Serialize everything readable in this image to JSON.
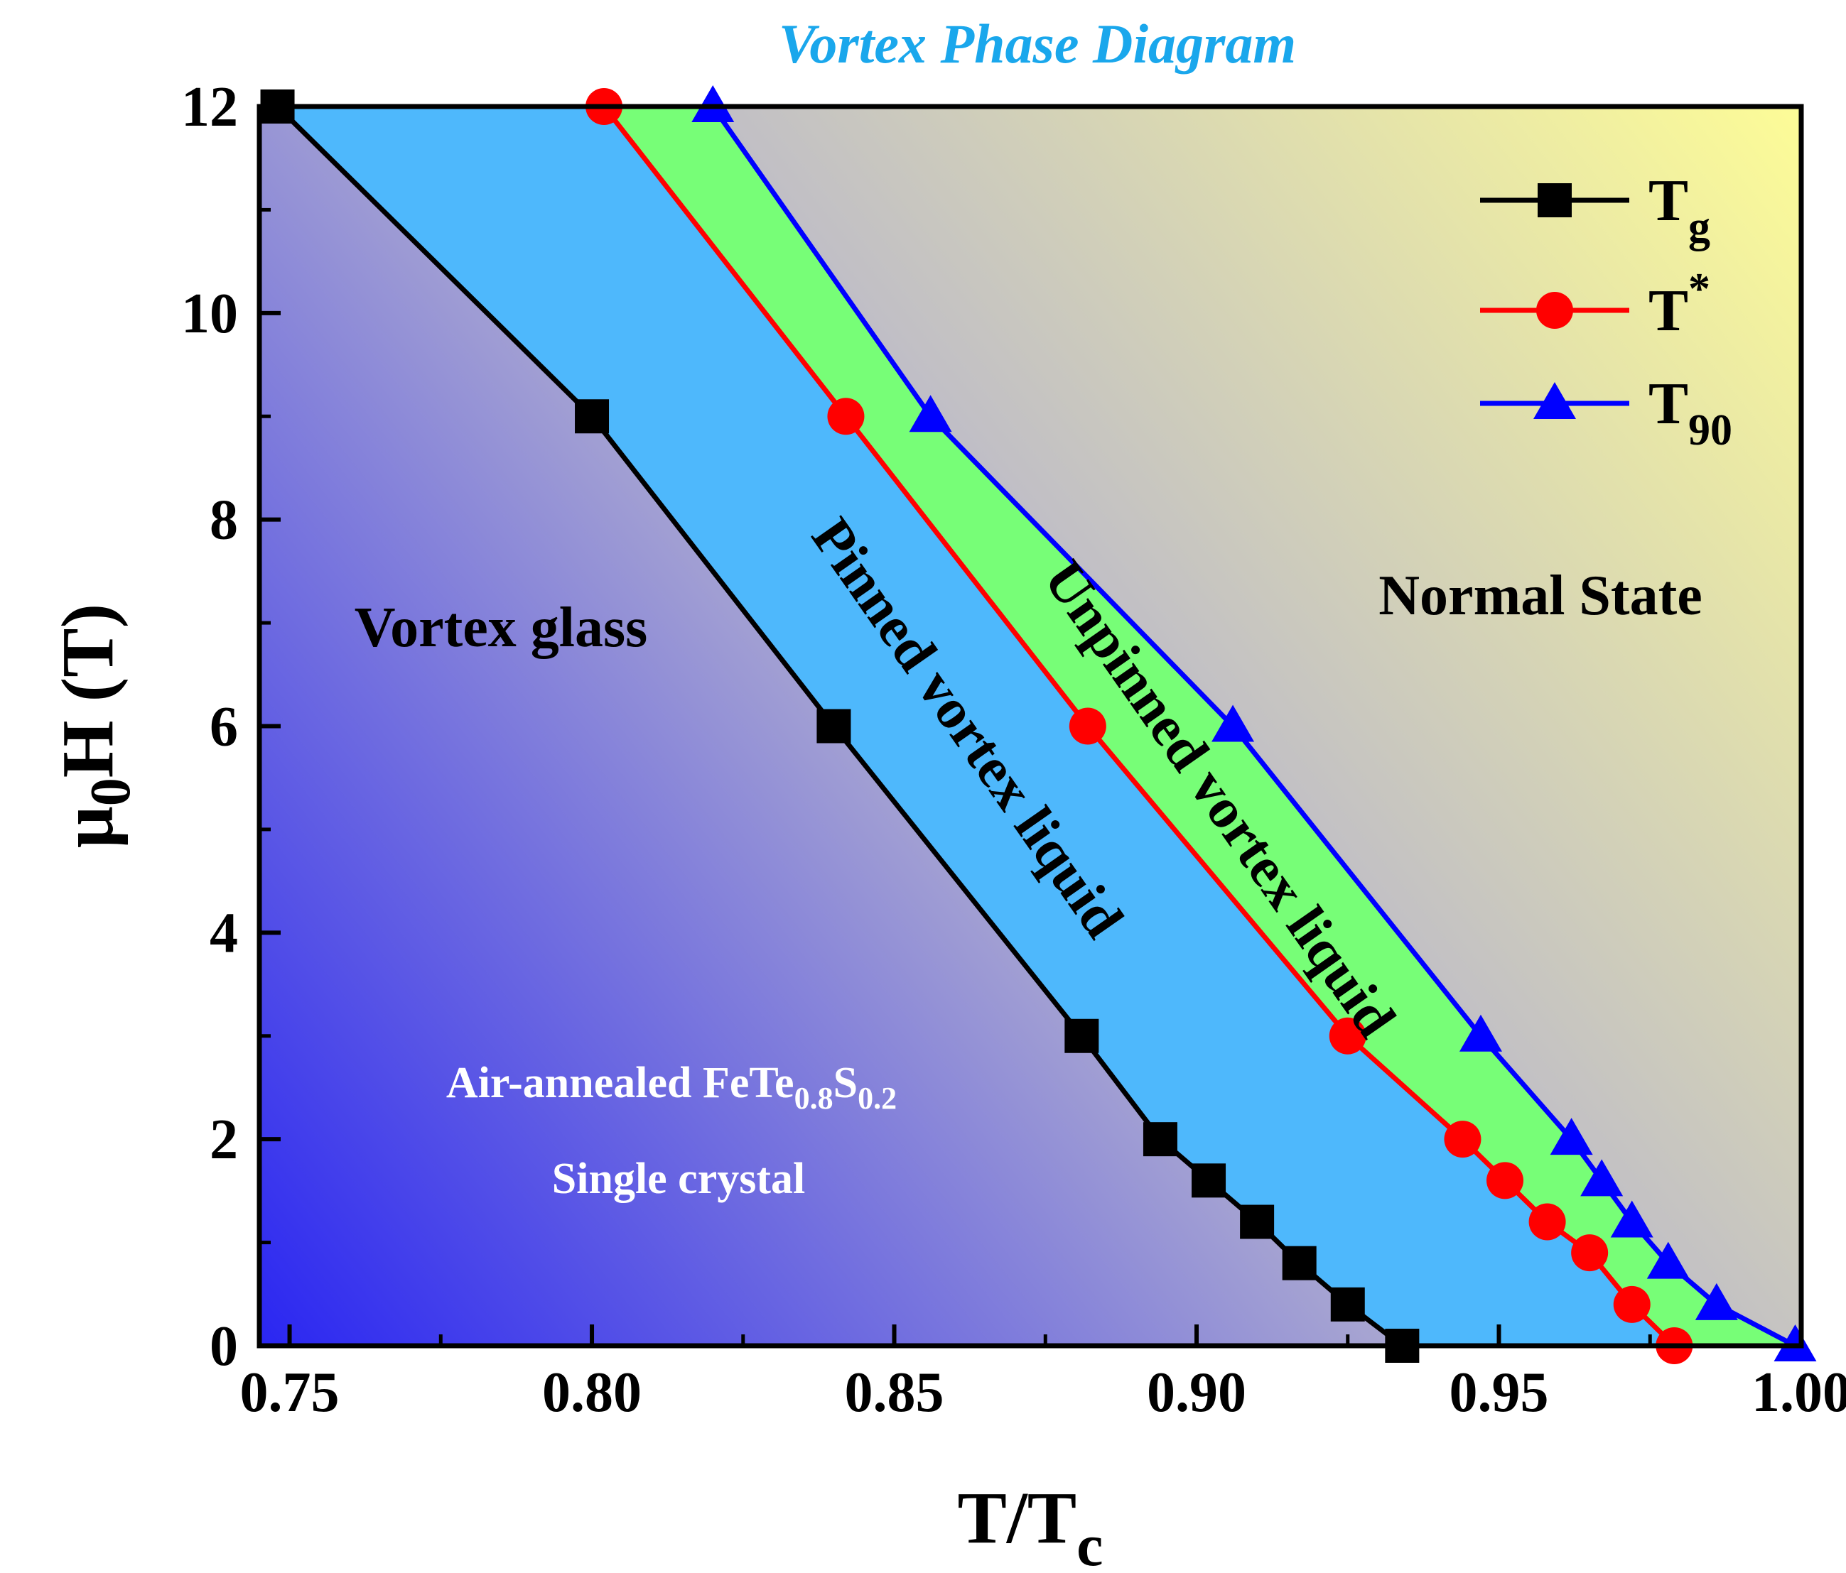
{
  "chart_data": {
    "type": "line",
    "title": "Vortex Phase Diagram",
    "xlabel": {
      "main": "T/T",
      "sub": "c"
    },
    "ylabel": {
      "pre": "μ",
      "sub": "0",
      "post": "H (T)"
    },
    "xlim": [
      0.745,
      1.0
    ],
    "ylim": [
      0,
      12
    ],
    "xticks": [
      "0.75",
      "0.80",
      "0.85",
      "0.90",
      "0.95",
      "1.00"
    ],
    "yticks": [
      "0",
      "2",
      "4",
      "6",
      "8",
      "10",
      "12"
    ],
    "grid": false,
    "legend_position": "top-right",
    "series": [
      {
        "name": {
          "main": "T",
          "sub": "g",
          "sup": ""
        },
        "color": "#000000",
        "marker": "square",
        "x": [
          0.748,
          0.8,
          0.84,
          0.881,
          0.894,
          0.902,
          0.91,
          0.917,
          0.925,
          0.934
        ],
        "y": [
          12,
          9,
          6,
          3,
          2,
          1.6,
          1.2,
          0.8,
          0.4,
          0
        ]
      },
      {
        "name": {
          "main": "T",
          "sub": "",
          "sup": "*"
        },
        "color": "#ff0000",
        "marker": "circle",
        "x": [
          0.802,
          0.842,
          0.882,
          0.925,
          0.944,
          0.951,
          0.958,
          0.965,
          0.972,
          0.979
        ],
        "y": [
          12,
          9,
          6,
          3,
          2,
          1.6,
          1.2,
          0.9,
          0.4,
          0
        ]
      },
      {
        "name": {
          "main": "T",
          "sub": "90",
          "sup": ""
        },
        "color": "#0000ff",
        "marker": "triangle",
        "x": [
          0.82,
          0.856,
          0.906,
          0.947,
          0.962,
          0.967,
          0.972,
          0.978,
          0.986,
          0.999
        ],
        "y": [
          12,
          9,
          6,
          3,
          2,
          1.6,
          1.2,
          0.8,
          0.4,
          0
        ]
      }
    ],
    "annotations": {
      "vortex_glass": "Vortex glass",
      "pinned_liquid": "Pinned vortex liquid",
      "unpinned_liquid": "Unpinned vortex liquid",
      "normal_state": "Normal State",
      "sample_line1": {
        "a": "Air-annealed FeTe",
        "s1": "0.8",
        "b": "S",
        "s2": "0.2"
      },
      "sample_line2": "Single crystal"
    },
    "colors": {
      "title": "#1aa7ec",
      "pinned_fill": "#4eb8fc",
      "unpinned_fill": "#77fe77",
      "gradient_dark": "#2a26f2",
      "gradient_mid": "#b7b5cd",
      "gradient_light": "#fdfc97",
      "sample_text": "#ffffff"
    }
  }
}
